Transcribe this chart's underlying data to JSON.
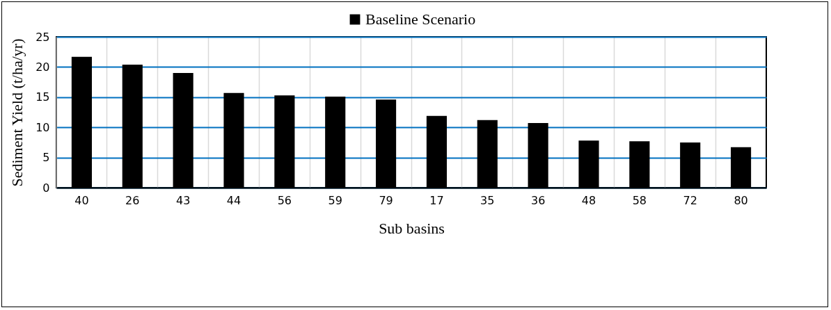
{
  "chart_data": {
    "type": "bar",
    "xlabel": "Sub basins",
    "ylabel": "Sediment Yield (t/ha/yr)",
    "categories": [
      "40",
      "26",
      "43",
      "44",
      "56",
      "59",
      "79",
      "17",
      "35",
      "36",
      "48",
      "58",
      "72",
      "80"
    ],
    "series": [
      {
        "name": "Baseline Scenario",
        "color": "#000000",
        "values": [
          21.7,
          20.4,
          19.0,
          15.7,
          15.3,
          15.1,
          14.6,
          11.9,
          11.2,
          10.7,
          7.8,
          7.7,
          7.5,
          6.7
        ]
      }
    ],
    "ylim": [
      0,
      25
    ],
    "yticks": [
      0,
      5,
      10,
      15,
      20,
      25
    ],
    "grid": true,
    "legend": "top"
  }
}
